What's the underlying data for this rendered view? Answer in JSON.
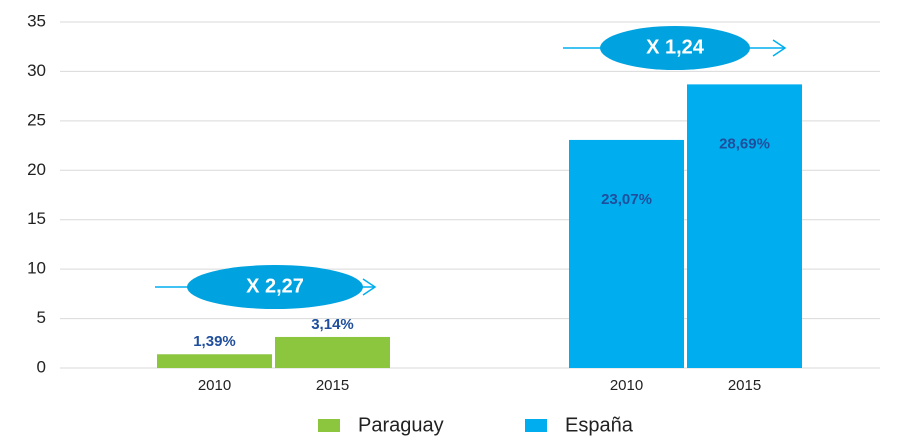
{
  "chart_data": {
    "type": "bar",
    "categories": [
      "2010",
      "2015"
    ],
    "series": [
      {
        "name": "Paraguay",
        "color": "#8cc63f",
        "values": [
          1.39,
          3.14
        ],
        "value_labels": [
          "1,39%",
          "3,14%"
        ]
      },
      {
        "name": "España",
        "color": "#00aeef",
        "values": [
          23.07,
          28.69
        ],
        "value_labels": [
          "23,07%",
          "28,69%"
        ]
      }
    ],
    "annotations": [
      "X 2,27",
      "X 1,24"
    ],
    "ylim": [
      0,
      35
    ],
    "yticks": [
      0,
      5,
      10,
      15,
      20,
      25,
      30,
      35
    ],
    "grid": true,
    "legend": "bottom"
  }
}
